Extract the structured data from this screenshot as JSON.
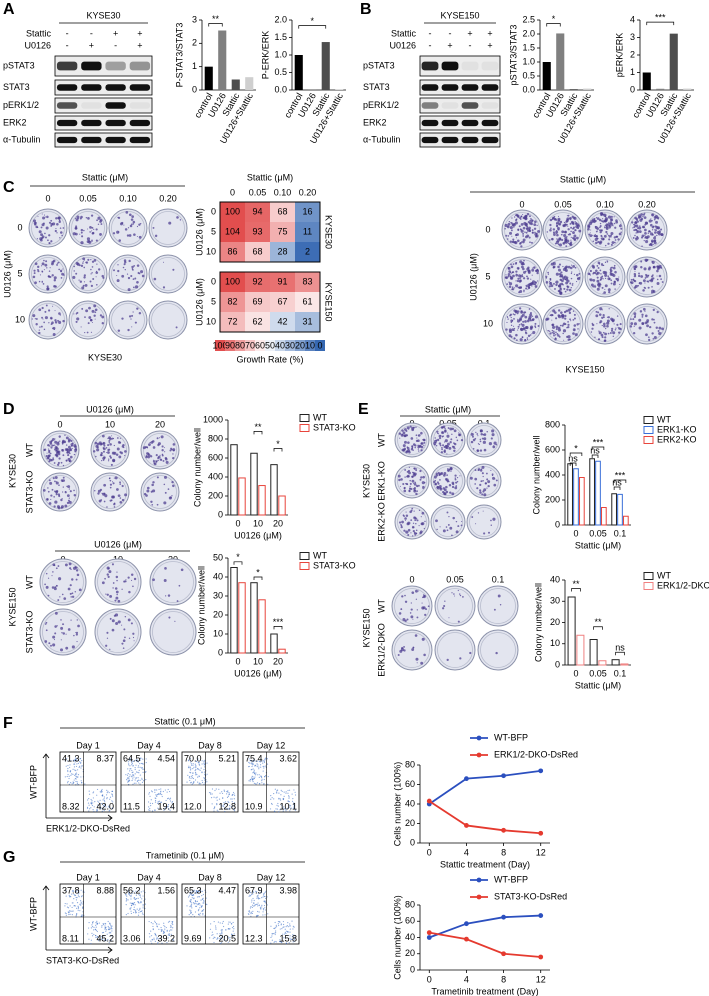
{
  "panels": {
    "A": {
      "label": "A",
      "blot": {
        "cell_line": "KYSE30",
        "treatments": [
          {
            "name": "Stattic",
            "signs": [
              "-",
              "-",
              "+",
              "+"
            ]
          },
          {
            "name": "U0126",
            "signs": [
              "-",
              "+",
              "-",
              "+"
            ]
          }
        ],
        "proteins": [
          "pSTAT3",
          "STAT3",
          "pERK1/2",
          "ERK2",
          "α-Tubulin"
        ]
      },
      "charts": [
        {
          "type": "bar",
          "ylabel": "P-STAT3/STAT3",
          "categories": [
            "control",
            "U0126",
            "Stattic",
            "U0126+Stattic"
          ],
          "values": [
            1,
            2.55,
            0.45,
            0.55
          ],
          "colors": [
            "#000000",
            "#808080",
            "#4d4d4d",
            "#cfcfcf"
          ],
          "ylim": [
            0,
            3
          ],
          "yticks": [
            0,
            1,
            2,
            3
          ],
          "significance": [
            "**"
          ]
        },
        {
          "type": "bar",
          "ylabel": "P-ERK/ERK",
          "categories": [
            "control",
            "U0126",
            "Stattic",
            "U0126+Stattic"
          ],
          "values": [
            1,
            0.02,
            1.37,
            0.02
          ],
          "colors": [
            "#000000",
            "#808080",
            "#4d4d4d",
            "#cfcfcf"
          ],
          "ylim": [
            0,
            2
          ],
          "yticks": [
            {
              "value": 0,
              "label": "0.0"
            },
            0.5,
            {
              "value": 1,
              "label": "1.0"
            },
            1.5,
            {
              "value": 2,
              "label": "2.0"
            }
          ],
          "significance": [
            "*"
          ]
        }
      ]
    },
    "B": {
      "label": "B",
      "blot": {
        "cell_line": "KYSE150",
        "treatments": [
          {
            "name": "Stattic",
            "signs": [
              "-",
              "-",
              "+",
              "+"
            ]
          },
          {
            "name": "U0126",
            "signs": [
              "-",
              "+",
              "-",
              "+"
            ]
          }
        ],
        "proteins": [
          "pSTAT3",
          "STAT3",
          "pERK1/2",
          "ERK2",
          "α-Tubulin"
        ]
      },
      "charts": [
        {
          "type": "bar",
          "ylabel": "pSTAT3/STAT3",
          "categories": [
            "control",
            "U0126",
            "Stattic",
            "U0126+Stattic"
          ],
          "values": [
            1,
            2.02,
            0.03,
            0.05
          ],
          "colors": [
            "#000000",
            "#808080",
            "#4d4d4d",
            "#cfcfcf"
          ],
          "ylim": [
            0,
            2.5
          ],
          "yticks": [
            {
              "value": 0,
              "label": "0.0"
            },
            0.5,
            {
              "value": 1,
              "label": "1.0"
            },
            1.5,
            {
              "value": 2,
              "label": "2.0"
            },
            2.5
          ],
          "significance": [
            "*"
          ]
        },
        {
          "type": "bar",
          "ylabel": "pERK/ERK",
          "categories": [
            "control",
            "U0126",
            "Stattic",
            "U0126+Stattic"
          ],
          "values": [
            1,
            0.07,
            3.22,
            0.08
          ],
          "colors": [
            "#000000",
            "#808080",
            "#4d4d4d",
            "#cfcfcf"
          ],
          "ylim": [
            0,
            4
          ],
          "yticks": [
            0,
            1,
            2,
            3,
            4
          ],
          "significance": [
            "***"
          ]
        }
      ]
    },
    "C": {
      "label": "C",
      "plates": [
        {
          "title": "Stattic (μM)",
          "columns": [
            "0",
            "0.05",
            "0.10",
            "0.20"
          ],
          "row_title": "U0126 (μM)",
          "rows": [
            "0",
            "5",
            "10"
          ],
          "cell_line": "KYSE30"
        },
        {
          "title": "Stattic (μM)",
          "columns": [
            "0",
            "0.05",
            "0.10",
            "0.20"
          ],
          "row_title": "U0126 (μM)",
          "rows": [
            "0",
            "5",
            "10"
          ],
          "cell_line": "KYSE150"
        }
      ],
      "heatmap": {
        "title": "Stattic (μM)",
        "columns": [
          "0",
          "0.05",
          "0.10",
          "0.20"
        ],
        "row_title": "U0126 (μM)",
        "rows": [
          "0",
          "5",
          "10"
        ],
        "blocks": [
          {
            "cell_line": "KYSE30",
            "values": [
              [
                100,
                94,
                68,
                16
              ],
              [
                104,
                93,
                75,
                11
              ],
              [
                86,
                68,
                28,
                2
              ]
            ]
          },
          {
            "cell_line": "KYSE150",
            "values": [
              [
                100,
                92,
                91,
                83
              ],
              [
                82,
                69,
                67,
                61
              ],
              [
                72,
                62,
                42,
                31
              ]
            ]
          }
        ],
        "colorbar": {
          "labels": [
            100,
            90,
            80,
            70,
            60,
            50,
            40,
            30,
            20,
            10,
            0
          ],
          "title": "Growth Rate (%)"
        }
      }
    },
    "D": {
      "label": "D",
      "rows": [
        {
          "plates": {
            "title": "U0126 (μM)",
            "columns": [
              "0",
              "10",
              "20"
            ],
            "rows": [
              "WT",
              "STAT3-KO"
            ],
            "cell_line": "KYSE30"
          },
          "chart": {
            "type": "bar",
            "ylabel": "Colony number/well",
            "xlabel": "U0126 (μM)",
            "categories": [
              "0",
              "10",
              "20"
            ],
            "series": [
              {
                "name": "WT",
                "color": "#222222",
                "values": [
                  740,
                  650,
                  530
                ]
              },
              {
                "name": "STAT3-KO",
                "color": "#e8453c",
                "values": [
                  390,
                  310,
                  200
                ]
              }
            ],
            "ylim": [
              0,
              1000
            ],
            "yticks": [
              0,
              200,
              400,
              600,
              800,
              1000
            ],
            "significance": [
              "**",
              "*"
            ]
          }
        },
        {
          "plates": {
            "title": "U0126 (μM)",
            "columns": [
              "0",
              "10",
              "20"
            ],
            "rows": [
              "WT",
              "STAT3-KO"
            ],
            "cell_line": "KYSE150"
          },
          "chart": {
            "type": "bar",
            "ylabel": "Colony number/well",
            "xlabel": "U0126 (μM)",
            "categories": [
              "0",
              "10",
              "20"
            ],
            "series": [
              {
                "name": "WT",
                "color": "#222222",
                "values": [
                  45,
                  37,
                  10
                ]
              },
              {
                "name": "STAT3-KO",
                "color": "#e8453c",
                "values": [
                  37,
                  28,
                  2
                ]
              }
            ],
            "ylim": [
              0,
              50
            ],
            "yticks": [
              0,
              10,
              20,
              30,
              40,
              50
            ],
            "significance": [
              "*",
              "*",
              "***"
            ]
          }
        }
      ]
    },
    "E": {
      "label": "E",
      "rows": [
        {
          "plates": {
            "title": "Stattic (μM)",
            "columns": [
              "0",
              "0.05",
              "0.1"
            ],
            "rows": [
              "WT",
              "ERK1-KO",
              "ERK2-KO"
            ],
            "cell_line": "KYSE30"
          },
          "chart": {
            "type": "bar",
            "ylabel": "Colony number/well",
            "xlabel": "Stattic (μM)",
            "categories": [
              "0",
              "0.05",
              "0.1"
            ],
            "series": [
              {
                "name": "WT",
                "color": "#222222",
                "values": [
                  490,
                  530,
                  250
                ]
              },
              {
                "name": "ERK1-KO",
                "color": "#3a6fd8",
                "values": [
                  450,
                  510,
                  245
                ]
              },
              {
                "name": "ERK2-KO",
                "color": "#e8453c",
                "values": [
                  380,
                  140,
                  70
                ]
              }
            ],
            "ylim": [
              0,
              800
            ],
            "yticks": [
              0,
              200,
              400,
              600,
              800
            ],
            "significance": [
              "*",
              "ns",
              "***",
              "ns",
              "***",
              "ns"
            ]
          }
        },
        {
          "plates": {
            "columns": [
              "0",
              "0.05",
              "0.1"
            ],
            "rows": [
              "WT",
              "ERK1/2-DKO"
            ],
            "cell_line": "KYSE150"
          },
          "chart": {
            "type": "bar",
            "ylabel": "Colony number/well",
            "xlabel": "Stattic (μM)",
            "categories": [
              "0",
              "0.05",
              "0.1"
            ],
            "series": [
              {
                "name": "WT",
                "color": "#222222",
                "values": [
                  32,
                  12,
                  2.5
                ]
              },
              {
                "name": "ERK1/2-DKO",
                "color": "#f08080",
                "values": [
                  14,
                  2,
                  0.5
                ]
              }
            ],
            "ylim": [
              0,
              40
            ],
            "yticks": [
              0,
              10,
              20,
              30,
              40
            ],
            "significance": [
              "**",
              "**",
              "ns"
            ]
          }
        }
      ]
    },
    "F": {
      "label": "F",
      "flow": {
        "title": "Stattic (0.1 μM)",
        "ylabel": "WT-BFP",
        "xlabel": "ERK1/2-DKO-DsRed",
        "plots": [
          {
            "day": "Day 1",
            "quadrants": [
              "41.3",
              "8.37",
              "8.32",
              "42.0"
            ]
          },
          {
            "day": "Day 4",
            "quadrants": [
              "64.5",
              "4.54",
              "11.5",
              "19.4"
            ]
          },
          {
            "day": "Day 8",
            "quadrants": [
              "70.0",
              "5.21",
              "12.0",
              "12.8"
            ]
          },
          {
            "day": "Day 12",
            "quadrants": [
              "75.4",
              "3.62",
              "10.9",
              "10.1"
            ]
          }
        ]
      },
      "chart": {
        "type": "line",
        "ylabel": "Cells number (100%)",
        "xlabel": "Stattic treatment (Day)",
        "x": [
          0,
          4,
          8,
          12
        ],
        "series": [
          {
            "name": "WT-BFP",
            "color": "#2b4fbf",
            "values": [
              40,
              66,
              69,
              74
            ]
          },
          {
            "name": "ERK1/2-DKO-DsRed",
            "color": "#e53a2f",
            "values": [
              43,
              18,
              13,
              10
            ]
          }
        ],
        "xlim": [
          -1,
          13
        ],
        "xticks": [
          0,
          4,
          8,
          12
        ],
        "ylim": [
          0,
          80
        ],
        "yticks": [
          0,
          20,
          40,
          60,
          80
        ]
      }
    },
    "G": {
      "label": "G",
      "flow": {
        "title": "Trametinib (0.1 μM)",
        "ylabel": "WT-BFP",
        "xlabel": "STAT3-KO-DsRed",
        "plots": [
          {
            "day": "Day 1",
            "quadrants": [
              "37.8",
              "8.88",
              "8.11",
              "45.2"
            ]
          },
          {
            "day": "Day 4",
            "quadrants": [
              "56.2",
              "1.56",
              "3.06",
              "39.2"
            ]
          },
          {
            "day": "Day 8",
            "quadrants": [
              "65.3",
              "4.47",
              "9.69",
              "20.5"
            ]
          },
          {
            "day": "Day 12",
            "quadrants": [
              "67.9",
              "3.98",
              "12.3",
              "15.8"
            ]
          }
        ]
      },
      "chart": {
        "type": "line",
        "ylabel": "Cells number (100%)",
        "xlabel": "Trametinib treatment (Day)",
        "x": [
          0,
          4,
          8,
          12
        ],
        "series": [
          {
            "name": "WT-BFP",
            "color": "#2b4fbf",
            "values": [
              40,
              57,
              65,
              67
            ]
          },
          {
            "name": "STAT3-KO-DsRed",
            "color": "#e53a2f",
            "values": [
              46,
              38,
              20,
              16
            ]
          }
        ],
        "xlim": [
          -1,
          13
        ],
        "xticks": [
          0,
          4,
          8,
          12
        ],
        "ylim": [
          0,
          80
        ],
        "yticks": [
          0,
          20,
          40,
          60,
          80
        ]
      }
    }
  }
}
